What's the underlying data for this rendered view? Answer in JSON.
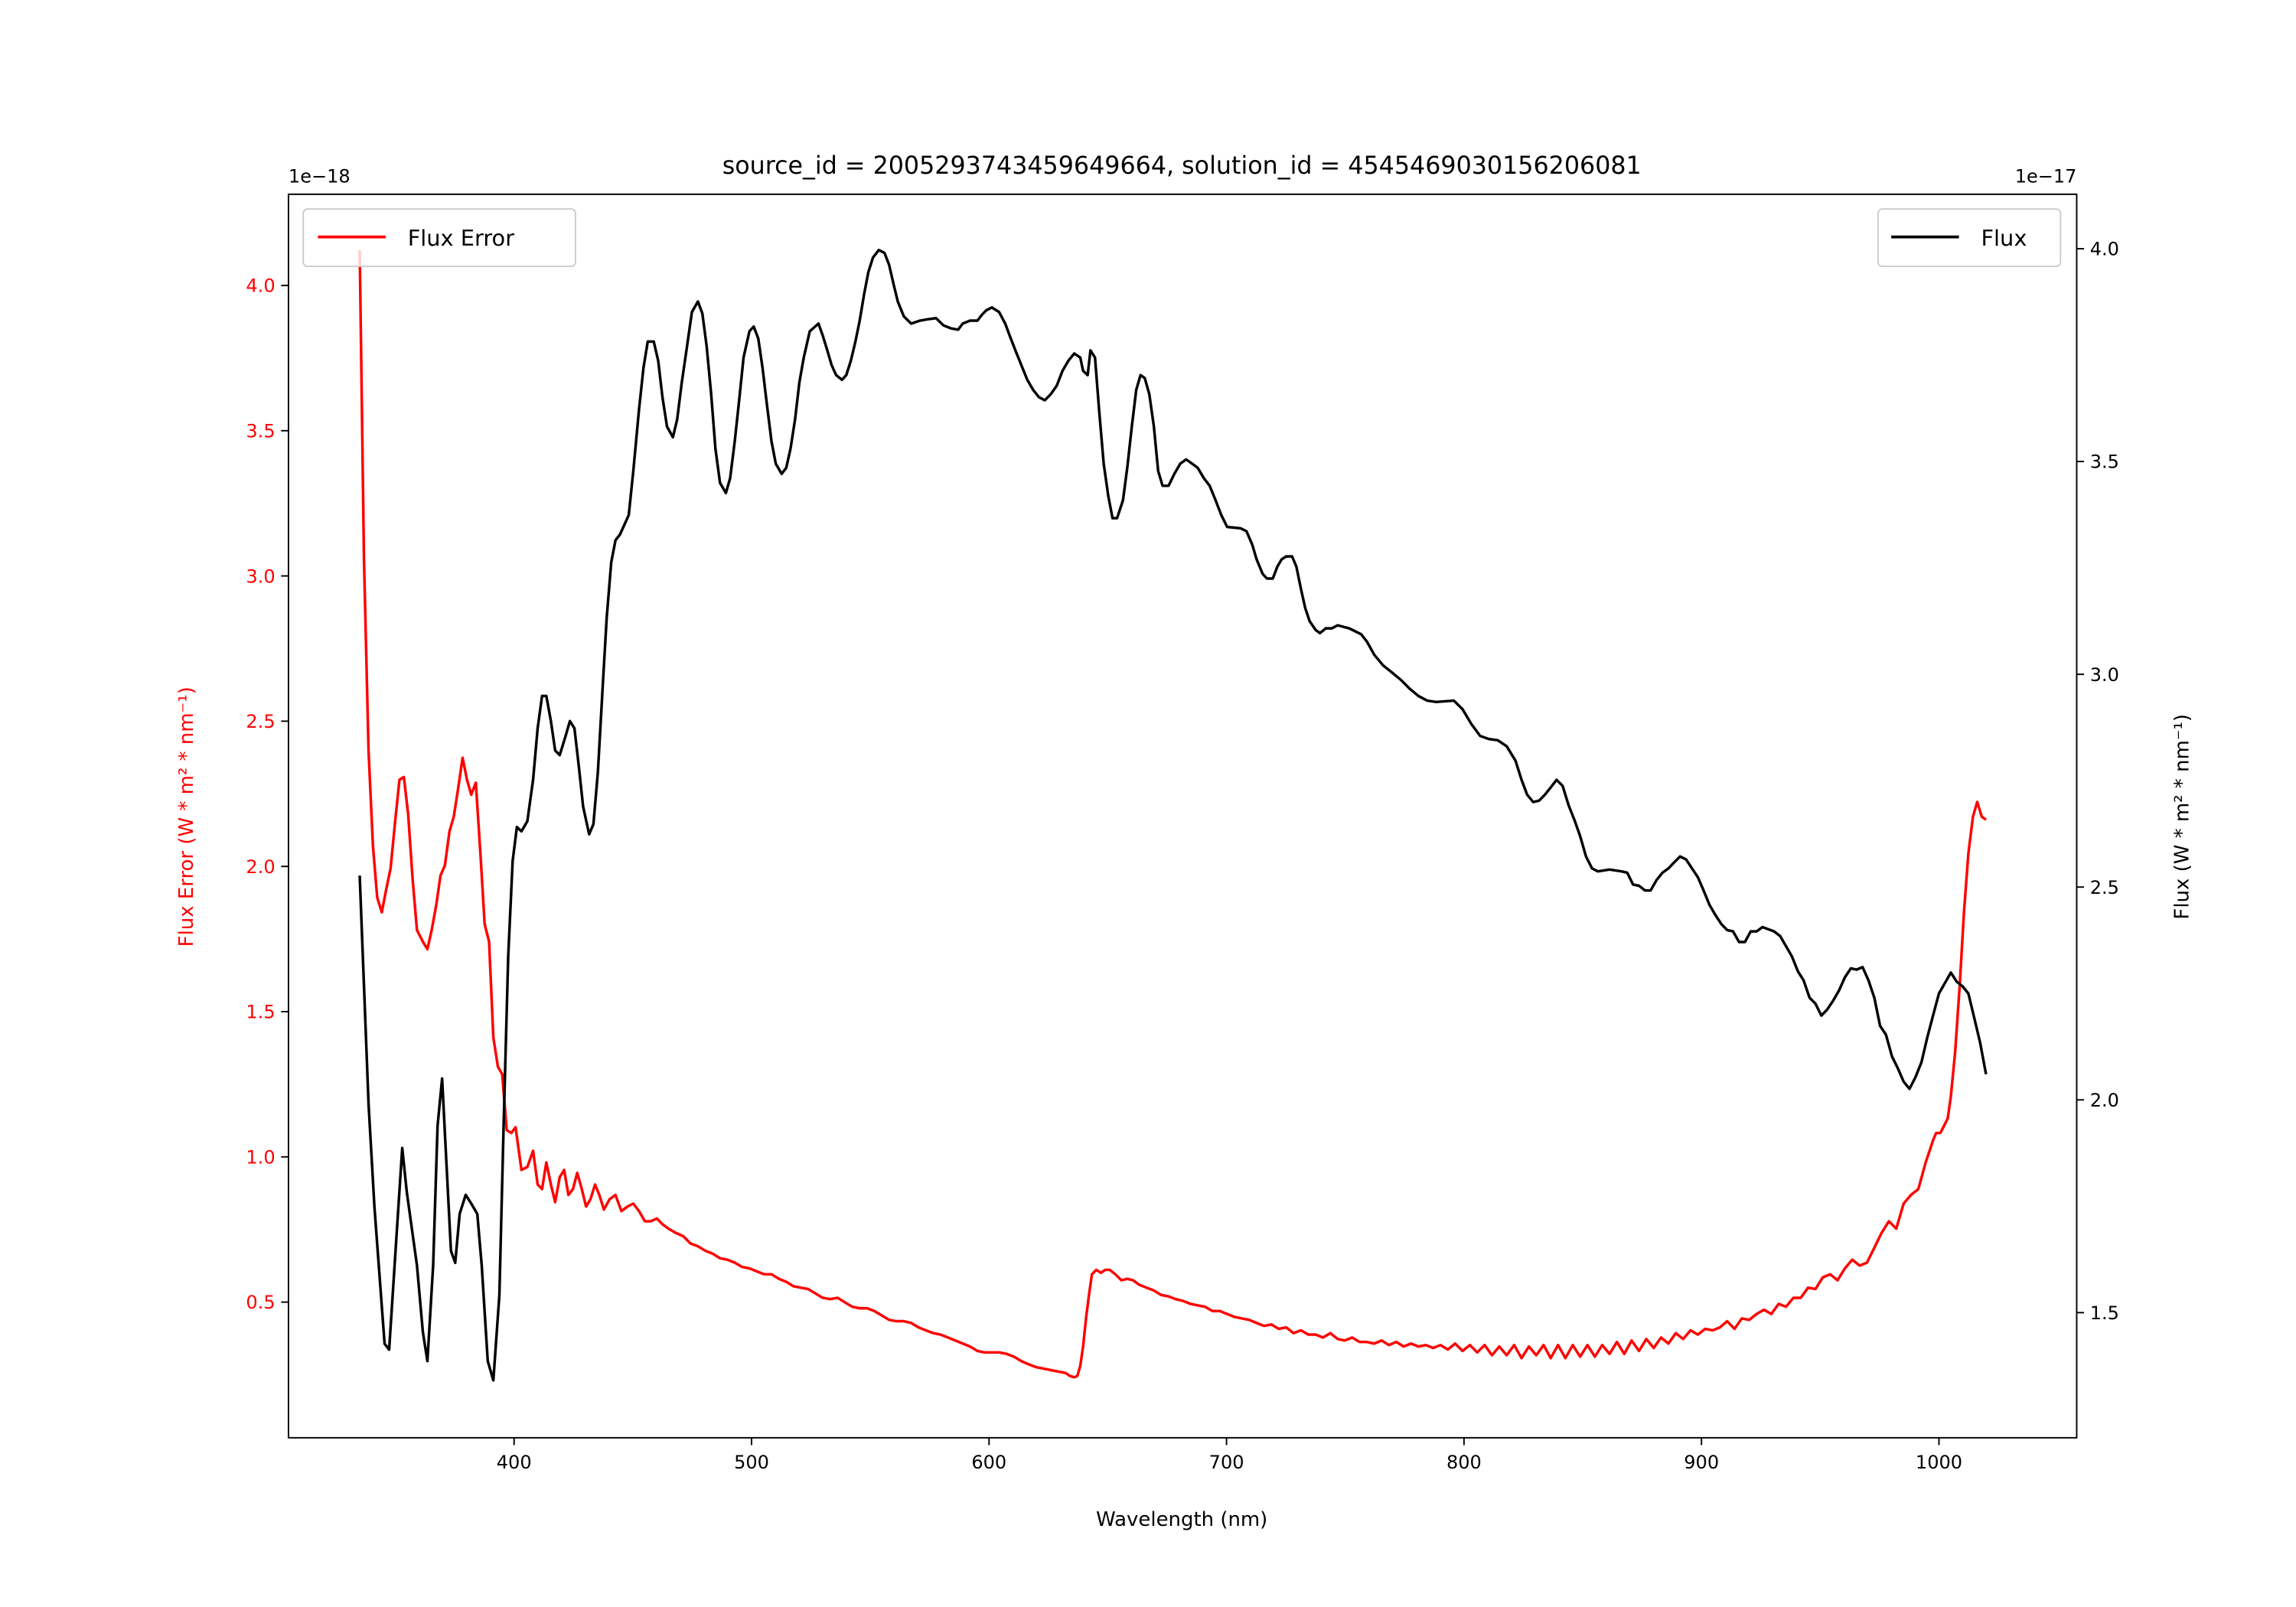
{
  "chart_data": {
    "type": "line",
    "title": "source_id = 2005293743459649664, solution_id = 4545469030156206081",
    "xlabel": "Wavelength (nm)",
    "ylabel_left": "Flux Error (W * m² * nm⁻¹)",
    "ylabel_right": "Flux (W * m² * nm⁻¹)",
    "offset_left": "1e−18",
    "offset_right": "1e−17",
    "xlim": [
      305,
      1058
    ],
    "ylim_left": [
      0.033,
      4.314
    ],
    "ylim_right": [
      1.206,
      4.128
    ],
    "xticks": [
      "400",
      "500",
      "600",
      "700",
      "800",
      "900",
      "1000"
    ],
    "yticks_left": [
      "0.5",
      "1.0",
      "1.5",
      "2.0",
      "2.5",
      "3.0",
      "3.5",
      "4.0"
    ],
    "yticks_right": [
      "1.5",
      "2.0",
      "2.5",
      "3.0",
      "3.5",
      "4.0"
    ],
    "grid": false,
    "colors": {
      "flux_error": "#ff0000",
      "flux": "#000000"
    },
    "series": [
      {
        "name": "Flux Error",
        "axis": "left",
        "legend_position": "upper-left",
        "x": [
          335.0,
          336.8,
          338.7,
          340.6,
          342.4,
          344.3,
          346.1,
          348.0,
          349.8,
          351.7,
          353.6,
          355.4,
          357.3,
          359.1,
          361.6,
          363.5,
          365.3,
          367.2,
          369.0,
          370.9,
          372.8,
          374.6,
          376.5,
          378.3,
          380.2,
          382.0,
          383.9,
          385.8,
          387.6,
          389.5,
          391.3,
          393.2,
          395.0,
          396.9,
          398.8,
          400.6,
          403.1,
          405.6,
          408.0,
          409.9,
          411.8,
          413.6,
          415.5,
          417.3,
          419.2,
          421.1,
          422.9,
          424.8,
          426.6,
          428.5,
          430.3,
          432.2,
          434.1,
          435.9,
          437.8,
          440.2,
          442.7,
          445.2,
          447.7,
          450.2,
          452.6,
          455.1,
          457.6,
          460.1,
          462.5,
          465.0,
          468.1,
          471.2,
          474.3,
          477.4,
          480.5,
          483.6,
          486.7,
          489.8,
          492.9,
          496.0,
          499.1,
          502.2,
          505.3,
          508.4,
          511.5,
          514.6,
          517.6,
          520.7,
          523.8,
          526.9,
          530.0,
          533.1,
          536.2,
          539.3,
          542.4,
          545.5,
          548.6,
          551.7,
          554.8,
          557.9,
          561.0,
          564.1,
          567.2,
          570.3,
          573.4,
          576.5,
          579.6,
          582.7,
          585.8,
          588.9,
          592.0,
          595.1,
          598.1,
          601.2,
          604.3,
          607.4,
          610.5,
          613.6,
          616.7,
          619.8,
          622.9,
          626.0,
          629.1,
          632.2,
          634.1,
          635.9,
          637.2,
          638.4,
          639.6,
          640.9,
          642.1,
          643.3,
          645.2,
          647.1,
          648.9,
          650.8,
          653.2,
          655.7,
          658.2,
          660.7,
          663.2,
          666.3,
          669.4,
          672.4,
          675.5,
          678.6,
          681.7,
          684.8,
          687.9,
          691.0,
          694.1,
          697.2,
          700.3,
          703.4,
          706.5,
          709.6,
          712.7,
          715.8,
          718.9,
          722.0,
          725.1,
          728.2,
          731.3,
          734.4,
          737.5,
          740.6,
          743.7,
          746.8,
          749.8,
          752.9,
          756.0,
          759.1,
          762.2,
          765.3,
          768.4,
          771.5,
          774.6,
          777.7,
          780.8,
          783.9,
          787.0,
          790.1,
          793.2,
          796.3,
          799.4,
          802.5,
          805.6,
          808.7,
          811.8,
          814.9,
          818.0,
          821.1,
          824.2,
          827.3,
          830.4,
          833.5,
          836.5,
          839.6,
          842.7,
          845.8,
          848.9,
          852.0,
          855.1,
          858.2,
          861.3,
          864.4,
          867.5,
          870.6,
          873.7,
          876.8,
          879.9,
          883.0,
          886.1,
          889.2,
          892.3,
          895.4,
          898.5,
          901.6,
          904.7,
          907.8,
          910.8,
          913.9,
          917.0,
          920.1,
          923.2,
          926.3,
          929.4,
          932.5,
          935.6,
          938.7,
          941.8,
          944.9,
          948.0,
          951.1,
          954.2,
          957.3,
          960.4,
          963.5,
          966.6,
          969.7,
          972.8,
          975.8,
          978.9,
          982.0,
          985.1,
          988.2,
          991.3,
          994.4,
          997.5,
          998.8,
          1000.6,
          1003.7,
          1005.0,
          1006.8,
          1008.7,
          1010.5,
          1012.4,
          1014.3,
          1016.1,
          1018.0,
          1019.8
        ],
        "y": [
          4.122,
          3.058,
          2.399,
          2.07,
          1.893,
          1.842,
          1.918,
          1.994,
          2.146,
          2.298,
          2.308,
          2.181,
          1.953,
          1.781,
          1.741,
          1.715,
          1.781,
          1.867,
          1.969,
          2.004,
          2.121,
          2.171,
          2.272,
          2.374,
          2.298,
          2.247,
          2.288,
          2.045,
          1.801,
          1.741,
          1.411,
          1.31,
          1.285,
          1.092,
          1.082,
          1.102,
          0.955,
          0.965,
          1.021,
          0.905,
          0.889,
          0.981,
          0.905,
          0.844,
          0.93,
          0.955,
          0.869,
          0.889,
          0.945,
          0.889,
          0.829,
          0.854,
          0.905,
          0.869,
          0.819,
          0.854,
          0.869,
          0.813,
          0.829,
          0.839,
          0.813,
          0.778,
          0.778,
          0.788,
          0.768,
          0.753,
          0.738,
          0.727,
          0.702,
          0.692,
          0.677,
          0.667,
          0.651,
          0.646,
          0.636,
          0.621,
          0.616,
          0.606,
          0.596,
          0.596,
          0.58,
          0.57,
          0.555,
          0.55,
          0.545,
          0.53,
          0.515,
          0.51,
          0.515,
          0.499,
          0.484,
          0.479,
          0.479,
          0.469,
          0.454,
          0.439,
          0.434,
          0.434,
          0.428,
          0.413,
          0.403,
          0.393,
          0.388,
          0.378,
          0.368,
          0.357,
          0.347,
          0.332,
          0.327,
          0.327,
          0.327,
          0.322,
          0.312,
          0.297,
          0.286,
          0.276,
          0.271,
          0.266,
          0.261,
          0.256,
          0.246,
          0.241,
          0.246,
          0.281,
          0.347,
          0.449,
          0.525,
          0.596,
          0.611,
          0.601,
          0.611,
          0.611,
          0.596,
          0.575,
          0.58,
          0.575,
          0.56,
          0.55,
          0.54,
          0.525,
          0.52,
          0.51,
          0.504,
          0.494,
          0.489,
          0.484,
          0.469,
          0.469,
          0.459,
          0.449,
          0.444,
          0.439,
          0.428,
          0.418,
          0.423,
          0.408,
          0.413,
          0.393,
          0.403,
          0.388,
          0.388,
          0.378,
          0.393,
          0.373,
          0.368,
          0.378,
          0.363,
          0.363,
          0.357,
          0.368,
          0.352,
          0.363,
          0.347,
          0.357,
          0.347,
          0.352,
          0.342,
          0.352,
          0.337,
          0.357,
          0.332,
          0.352,
          0.327,
          0.352,
          0.317,
          0.347,
          0.317,
          0.352,
          0.307,
          0.347,
          0.317,
          0.352,
          0.307,
          0.352,
          0.307,
          0.352,
          0.312,
          0.352,
          0.312,
          0.352,
          0.322,
          0.363,
          0.322,
          0.368,
          0.332,
          0.373,
          0.342,
          0.378,
          0.357,
          0.393,
          0.373,
          0.403,
          0.388,
          0.408,
          0.403,
          0.413,
          0.434,
          0.408,
          0.444,
          0.439,
          0.459,
          0.474,
          0.459,
          0.494,
          0.484,
          0.515,
          0.515,
          0.55,
          0.545,
          0.585,
          0.596,
          0.575,
          0.616,
          0.646,
          0.626,
          0.636,
          0.687,
          0.738,
          0.778,
          0.753,
          0.839,
          0.869,
          0.889,
          0.981,
          1.057,
          1.082,
          1.082,
          1.133,
          1.209,
          1.361,
          1.589,
          1.842,
          2.045,
          2.171,
          2.222,
          2.171,
          2.161
        ]
      },
      {
        "name": "Flux",
        "axis": "right",
        "legend_position": "upper-right",
        "x": [
          335.0,
          338.7,
          341.2,
          345.5,
          347.4,
          350.5,
          352.9,
          354.8,
          359.1,
          361.6,
          363.5,
          365.9,
          367.8,
          369.7,
          371.5,
          373.4,
          375.2,
          377.1,
          379.6,
          382.0,
          384.5,
          386.4,
          388.9,
          391.3,
          393.8,
          395.7,
          397.5,
          399.4,
          401.2,
          403.1,
          405.6,
          408.0,
          409.9,
          411.8,
          413.6,
          415.5,
          417.3,
          419.2,
          421.7,
          423.5,
          425.4,
          427.2,
          429.1,
          431.6,
          433.4,
          435.3,
          437.2,
          439.0,
          440.9,
          442.7,
          444.6,
          448.3,
          450.2,
          452.6,
          454.5,
          456.3,
          458.8,
          460.7,
          462.5,
          464.4,
          466.9,
          468.7,
          470.6,
          472.4,
          474.9,
          477.4,
          479.3,
          481.1,
          483.0,
          484.8,
          486.7,
          489.2,
          491.0,
          492.9,
          494.7,
          496.6,
          499.1,
          500.9,
          502.8,
          504.6,
          506.5,
          508.4,
          510.2,
          512.7,
          514.6,
          516.4,
          518.3,
          520.1,
          522.0,
          524.5,
          528.2,
          530.0,
          531.9,
          533.7,
          535.6,
          538.1,
          539.9,
          541.8,
          543.7,
          545.5,
          547.4,
          549.2,
          551.1,
          553.6,
          556.0,
          557.9,
          559.8,
          561.6,
          564.1,
          567.2,
          570.9,
          574.0,
          577.7,
          580.8,
          583.9,
          587.0,
          588.9,
          592.0,
          595.1,
          596.9,
          598.8,
          601.2,
          604.3,
          606.8,
          608.7,
          611.1,
          613.6,
          616.1,
          618.6,
          621.0,
          623.5,
          626.0,
          628.5,
          630.9,
          633.4,
          635.9,
          638.4,
          639.6,
          641.5,
          642.7,
          644.6,
          646.4,
          648.3,
          650.2,
          652.0,
          653.9,
          656.4,
          658.2,
          660.1,
          662.0,
          663.8,
          665.6,
          667.5,
          669.4,
          671.2,
          673.1,
          675.6,
          678.0,
          680.5,
          683.0,
          685.5,
          687.9,
          690.4,
          692.9,
          695.4,
          697.8,
          700.3,
          705.9,
          708.4,
          710.8,
          712.7,
          715.2,
          717.0,
          719.5,
          721.4,
          723.2,
          725.1,
          727.6,
          729.4,
          731.3,
          733.1,
          735.0,
          737.5,
          739.3,
          741.8,
          744.3,
          746.8,
          751.7,
          756.7,
          759.1,
          762.2,
          765.9,
          769.7,
          773.4,
          777.1,
          780.8,
          784.5,
          788.2,
          795.7,
          799.4,
          803.1,
          806.8,
          810.5,
          814.2,
          818.0,
          821.7,
          824.2,
          826.6,
          829.1,
          831.6,
          834.1,
          836.5,
          839.0,
          841.5,
          844.0,
          846.5,
          848.9,
          851.4,
          853.9,
          856.4,
          861.3,
          866.3,
          868.7,
          871.2,
          873.7,
          876.2,
          878.6,
          881.1,
          883.6,
          886.1,
          888.5,
          891.0,
          893.5,
          896.0,
          898.5,
          900.9,
          903.4,
          905.9,
          908.4,
          910.8,
          913.3,
          915.8,
          918.3,
          920.7,
          923.2,
          925.7,
          930.6,
          933.1,
          935.6,
          938.1,
          940.6,
          943.0,
          945.5,
          948.0,
          950.5,
          952.9,
          955.4,
          957.9,
          960.4,
          962.9,
          965.3,
          967.8,
          970.3,
          972.8,
          975.2,
          977.7,
          980.2,
          982.7,
          985.1,
          987.6,
          990.1,
          992.6,
          995.1,
          997.5,
          1000.0,
          1002.5,
          1005.0,
          1007.4,
          1009.9,
          1012.4,
          1014.9,
          1017.3,
          1019.8
        ],
        "y": [
          2.527,
          1.991,
          1.749,
          1.427,
          1.413,
          1.68,
          1.887,
          1.783,
          1.611,
          1.455,
          1.386,
          1.611,
          1.939,
          2.05,
          1.853,
          1.645,
          1.617,
          1.732,
          1.777,
          1.756,
          1.732,
          1.611,
          1.386,
          1.341,
          1.541,
          1.956,
          2.337,
          2.561,
          2.641,
          2.631,
          2.655,
          2.752,
          2.873,
          2.949,
          2.949,
          2.89,
          2.821,
          2.81,
          2.855,
          2.89,
          2.873,
          2.786,
          2.689,
          2.624,
          2.648,
          2.769,
          2.959,
          3.132,
          3.263,
          3.315,
          3.329,
          3.374,
          3.478,
          3.623,
          3.72,
          3.782,
          3.782,
          3.737,
          3.651,
          3.582,
          3.557,
          3.599,
          3.685,
          3.754,
          3.851,
          3.876,
          3.848,
          3.772,
          3.658,
          3.53,
          3.45,
          3.426,
          3.461,
          3.547,
          3.64,
          3.744,
          3.806,
          3.817,
          3.789,
          3.72,
          3.633,
          3.547,
          3.495,
          3.471,
          3.485,
          3.53,
          3.599,
          3.685,
          3.744,
          3.806,
          3.824,
          3.796,
          3.761,
          3.727,
          3.703,
          3.692,
          3.703,
          3.737,
          3.782,
          3.831,
          3.893,
          3.945,
          3.979,
          3.997,
          3.99,
          3.962,
          3.917,
          3.876,
          3.841,
          3.824,
          3.831,
          3.834,
          3.837,
          3.82,
          3.813,
          3.81,
          3.824,
          3.831,
          3.831,
          3.844,
          3.855,
          3.862,
          3.851,
          3.824,
          3.796,
          3.761,
          3.727,
          3.692,
          3.668,
          3.651,
          3.644,
          3.658,
          3.678,
          3.713,
          3.737,
          3.754,
          3.744,
          3.713,
          3.703,
          3.761,
          3.744,
          3.616,
          3.495,
          3.419,
          3.367,
          3.367,
          3.409,
          3.485,
          3.582,
          3.668,
          3.703,
          3.696,
          3.658,
          3.582,
          3.478,
          3.443,
          3.443,
          3.471,
          3.495,
          3.505,
          3.495,
          3.485,
          3.461,
          3.443,
          3.409,
          3.374,
          3.346,
          3.343,
          3.336,
          3.305,
          3.27,
          3.236,
          3.225,
          3.225,
          3.253,
          3.27,
          3.277,
          3.277,
          3.253,
          3.201,
          3.156,
          3.125,
          3.104,
          3.097,
          3.108,
          3.108,
          3.115,
          3.108,
          3.094,
          3.077,
          3.046,
          3.021,
          3.004,
          2.987,
          2.966,
          2.949,
          2.938,
          2.935,
          2.938,
          2.918,
          2.883,
          2.855,
          2.848,
          2.845,
          2.831,
          2.797,
          2.752,
          2.717,
          2.7,
          2.703,
          2.717,
          2.734,
          2.752,
          2.738,
          2.693,
          2.658,
          2.62,
          2.572,
          2.544,
          2.537,
          2.541,
          2.537,
          2.534,
          2.506,
          2.503,
          2.492,
          2.492,
          2.517,
          2.534,
          2.544,
          2.558,
          2.572,
          2.565,
          2.544,
          2.523,
          2.492,
          2.458,
          2.434,
          2.413,
          2.399,
          2.396,
          2.371,
          2.371,
          2.396,
          2.396,
          2.406,
          2.396,
          2.385,
          2.361,
          2.337,
          2.302,
          2.281,
          2.24,
          2.226,
          2.198,
          2.212,
          2.233,
          2.257,
          2.288,
          2.309,
          2.306,
          2.312,
          2.281,
          2.24,
          2.174,
          2.153,
          2.102,
          2.074,
          2.043,
          2.026,
          2.053,
          2.088,
          2.147,
          2.198,
          2.25,
          2.274,
          2.299,
          2.278,
          2.267,
          2.25,
          2.191,
          2.136,
          2.06
        ]
      }
    ]
  }
}
